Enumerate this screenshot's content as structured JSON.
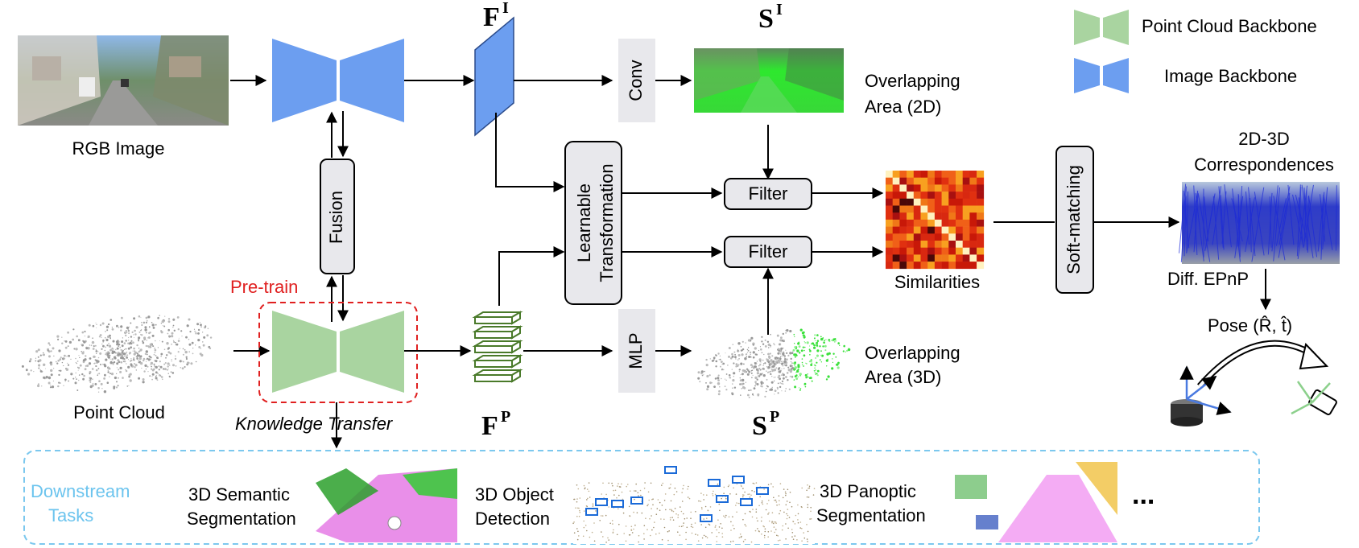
{
  "diagram": {
    "rgb_image_label": "RGB Image",
    "point_cloud_label": "Point Cloud",
    "fusion_label": "Fusion",
    "pretrain_label": "Pre-train",
    "knowledge_transfer_label": "Knowledge Transfer",
    "conv_label": "Conv",
    "mlp_label": "MLP",
    "learnable_transform_line1": "Learnable",
    "learnable_transform_line2": "Transformation",
    "filter_top_label": "Filter",
    "filter_bottom_label": "Filter",
    "feature_image_base": "F",
    "feature_image_sup": "I",
    "feature_point_base": "F",
    "feature_point_sup": "P",
    "score_image_base": "S",
    "score_image_sup": "I",
    "score_point_base": "S",
    "score_point_sup": "P",
    "overlap_2d_line1": "Overlapping",
    "overlap_2d_line2": "Area (2D)",
    "overlap_3d_line1": "Overlapping",
    "overlap_3d_line2": "Area (3D)",
    "similarities_label": "Similarities",
    "soft_matching_label": "Soft-matching",
    "correspondences_line1": "2D-3D",
    "correspondences_line2": "Correspondences",
    "diff_epnp_label": "Diff. EPnP",
    "pose_label": "Pose (R̂, t̂)"
  },
  "legend": {
    "point_cloud_backbone": "Point Cloud Backbone",
    "image_backbone": "Image Backbone"
  },
  "downstream": {
    "title_line1": "Downstream",
    "title_line2": "Tasks",
    "semantic_line1": "3D Semantic",
    "semantic_line2": "Segmentation",
    "detection_line1": "3D Object",
    "detection_line2": "Detection",
    "panoptic_line1": "3D Panoptic",
    "panoptic_line2": "Segmentation",
    "more": "..."
  },
  "colors": {
    "image_backbone": "#6c9ef0",
    "point_backbone": "#a9d4a0",
    "pretrain_border": "#e02020",
    "pretrain_text": "#e02020",
    "downstream_border": "#7cc8ee",
    "downstream_text": "#6cc4ee",
    "feature_point_stroke": "#4a7a2a",
    "box_fill": "#e8e8ec"
  },
  "icons": [
    "rgb-image-thumbnail",
    "point-cloud-thumbnail",
    "overlap-2d-thumbnail",
    "overlap-3d-thumbnail",
    "similarity-matrix",
    "correspondence-thumbnail",
    "lidar-sensor-icon",
    "camera-icon",
    "rotation-arrow-icon"
  ]
}
